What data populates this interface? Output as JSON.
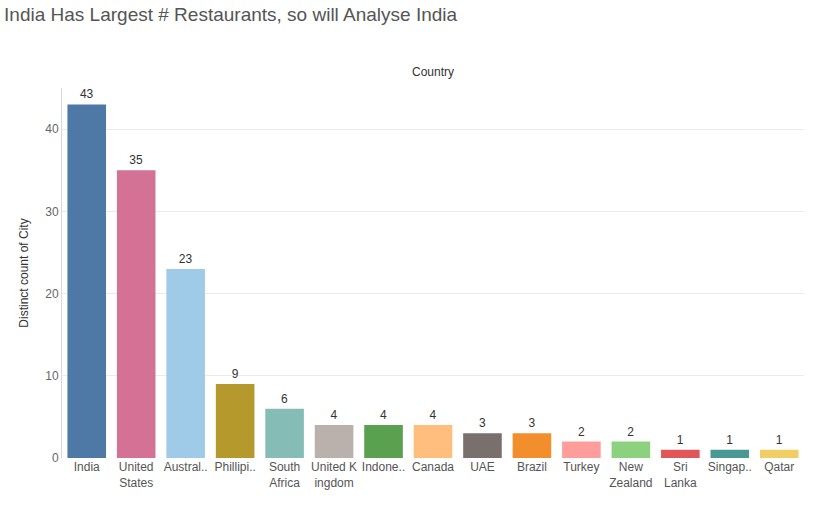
{
  "chart_data": {
    "type": "bar",
    "title": "India Has Largest # Restaurants, so will Analyse India",
    "xlabel": "Country",
    "ylabel": "Distinct count of City",
    "categories": [
      "India",
      "United States",
      "Austral..",
      "Phillipi..",
      "South Africa",
      "United K ingdom",
      "Indone..",
      "Canada",
      "UAE",
      "Brazil",
      "Turkey",
      "New Zealand",
      "Sri Lanka",
      "Singap..",
      "Qatar"
    ],
    "values": [
      43,
      35,
      23,
      9,
      6,
      4,
      4,
      4,
      3,
      3,
      2,
      2,
      1,
      1,
      1
    ],
    "colors": [
      "#4e79a7",
      "#d37295",
      "#a0cbe8",
      "#b6992d",
      "#86bcb6",
      "#bab0ac",
      "#59a14f",
      "#ffbe7d",
      "#79706e",
      "#f28e2b",
      "#ff9d9a",
      "#8cd17d",
      "#e15759",
      "#499894",
      "#f1ce63"
    ],
    "ylim": [
      0,
      45
    ],
    "yticks": [
      0,
      10,
      20,
      30,
      40
    ],
    "grid": true,
    "data_labels": true
  }
}
